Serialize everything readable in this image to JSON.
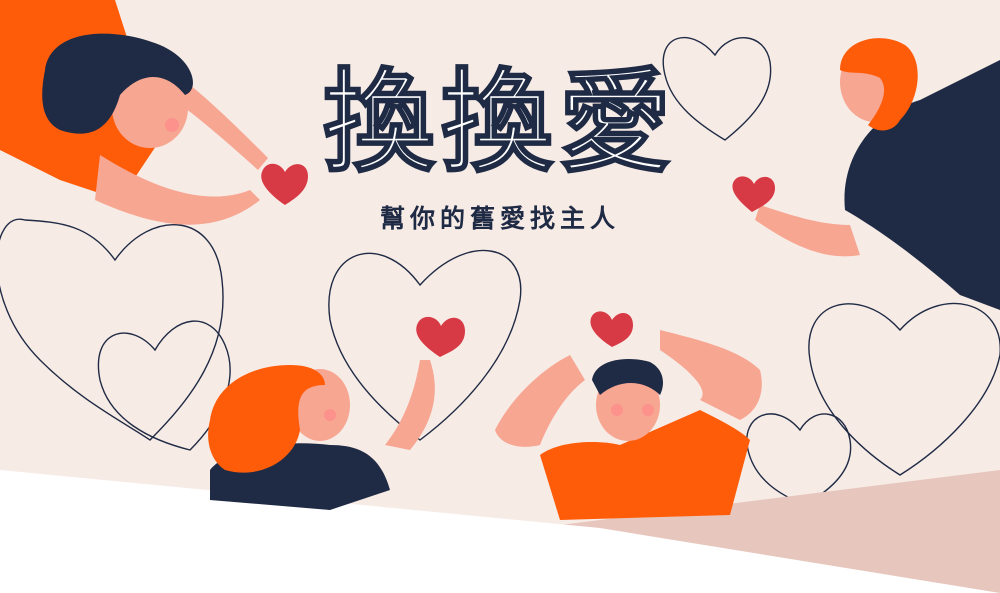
{
  "banner": {
    "title": "換換愛",
    "subtitle": "幫你的舊愛找主人"
  },
  "colors": {
    "background": "#f7ebe6",
    "accent_orange": "#ff5c0a",
    "navy": "#1f2a44",
    "heart_red": "#d83a45",
    "skin": "#f7a692",
    "bottom_band_light": "#ffffff",
    "bottom_band_tan": "#e7c7bd"
  },
  "illustrations": [
    {
      "name": "woman-dark-hair-giving-heart",
      "icon": "heart-icon"
    },
    {
      "name": "bearded-man-giving-heart",
      "icon": "heart-icon"
    },
    {
      "name": "red-haired-woman-holding-heart",
      "icon": "heart-icon"
    },
    {
      "name": "man-arms-raised-catching-heart",
      "icon": "heart-icon"
    }
  ]
}
